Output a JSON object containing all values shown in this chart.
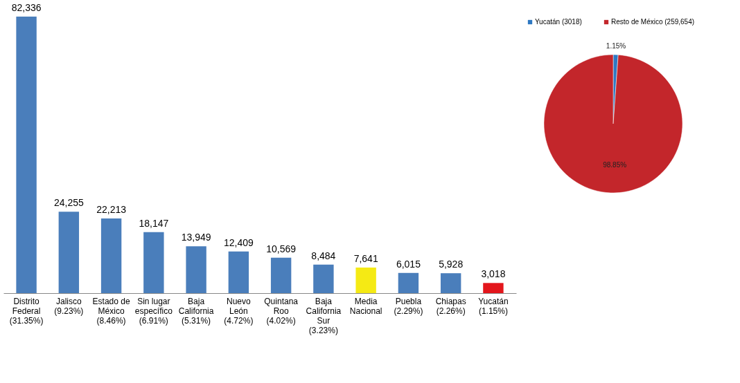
{
  "chart_data": [
    {
      "type": "bar",
      "categories": [
        "Distrito\nFederal\n(31.35%)",
        "Jalisco\n(9.23%)",
        "Estado de\nMéxico\n(8.46%)",
        "Sin lugar\nespecífico\n(6.91%)",
        "Baja\nCalifornia\n(5.31%)",
        "Nuevo\nLeón\n(4.72%)",
        "Quintana\nRoo\n(4.02%)",
        "Baja\nCalifornia\nSur\n(3.23%)",
        "Media\nNacional",
        "Puebla\n(2.29%)",
        "Chiapas\n(2.26%)",
        "Yucatán\n(1.15%)"
      ],
      "values": [
        82336,
        24255,
        22213,
        18147,
        13949,
        12409,
        10569,
        8484,
        7641,
        6015,
        5928,
        3018
      ],
      "colors": [
        "#4a7ebb",
        "#4a7ebb",
        "#4a7ebb",
        "#4a7ebb",
        "#4a7ebb",
        "#4a7ebb",
        "#4a7ebb",
        "#4a7ebb",
        "#f5ea14",
        "#4a7ebb",
        "#4a7ebb",
        "#e3161c"
      ],
      "value_labels": [
        "82,336",
        "24,255",
        "22,213",
        "18,147",
        "13,949",
        "12,409",
        "10,569",
        "8,484",
        "7,641",
        "6,015",
        "5,928",
        "3,018"
      ],
      "grid": false,
      "legend": false,
      "tick_labels": "x"
    },
    {
      "type": "pie",
      "categories": [
        "Yucatán (3018)",
        "Resto de México (259,654)"
      ],
      "values": [
        1.15,
        98.85
      ],
      "colors": [
        "#2e78c2",
        "#c3262b"
      ],
      "value_labels": [
        "1.15%",
        "98.85%"
      ],
      "legend": "top"
    }
  ]
}
